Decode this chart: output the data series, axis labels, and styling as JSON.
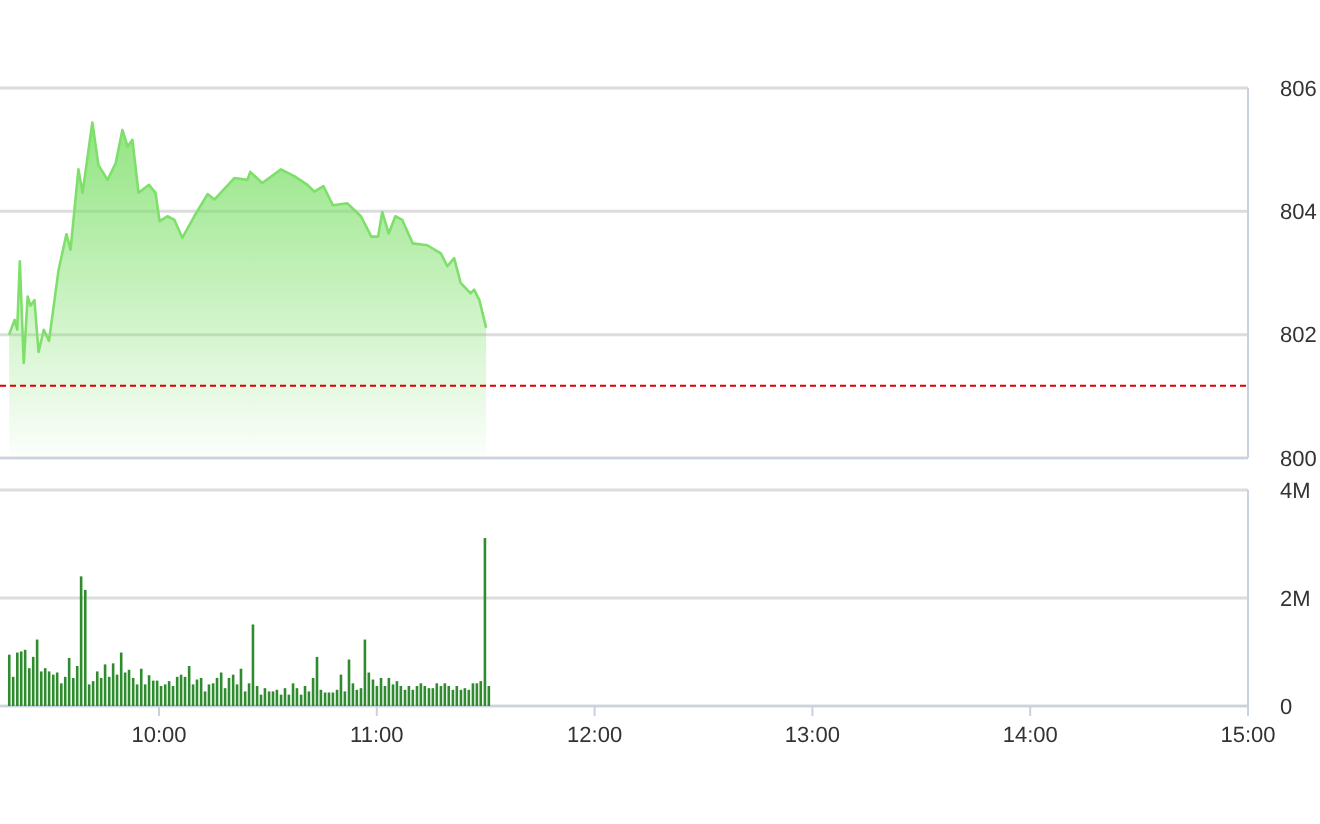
{
  "chart_data": [
    {
      "type": "area",
      "xlim": [
        9.27,
        15
      ],
      "ylim": [
        800,
        806
      ],
      "yticks": [
        800,
        802,
        804,
        806
      ],
      "grid": "y",
      "tick_labels": "y",
      "ref_lines": [
        {
          "axis": "y",
          "value": 801.17,
          "color": "#e00000",
          "line_style": "dashed"
        }
      ],
      "series": [
        {
          "color": "#7ee06a",
          "x": [
            9.312,
            9.337,
            9.349,
            9.361,
            9.379,
            9.397,
            9.41,
            9.428,
            9.447,
            9.471,
            9.495,
            9.539,
            9.575,
            9.594,
            9.63,
            9.649,
            9.694,
            9.722,
            9.764,
            9.801,
            9.832,
            9.856,
            9.878,
            9.906,
            9.954,
            9.984,
            10.003,
            10.039,
            10.071,
            10.107,
            10.162,
            10.223,
            10.254,
            10.346,
            10.406,
            10.419,
            10.474,
            10.56,
            10.621,
            10.682,
            10.713,
            10.755,
            10.798,
            10.865,
            10.927,
            10.975,
            11.006,
            11.025,
            11.055,
            11.085,
            11.117,
            11.165,
            11.232,
            11.294,
            11.324,
            11.355,
            11.385,
            11.431,
            11.447,
            11.471,
            11.502
          ],
          "values": [
            802.0,
            802.24,
            802.08,
            803.19,
            801.54,
            802.62,
            802.47,
            802.56,
            801.72,
            802.08,
            801.9,
            803.05,
            803.63,
            803.38,
            804.68,
            804.3,
            805.44,
            804.75,
            804.51,
            804.78,
            805.32,
            805.05,
            805.16,
            804.3,
            804.43,
            804.3,
            803.84,
            803.92,
            803.86,
            803.57,
            803.92,
            804.28,
            804.19,
            804.54,
            804.51,
            804.64,
            804.46,
            804.68,
            804.57,
            804.43,
            804.32,
            804.41,
            804.1,
            804.13,
            803.92,
            803.59,
            803.59,
            803.99,
            803.64,
            803.92,
            803.86,
            803.48,
            803.45,
            803.32,
            803.11,
            803.24,
            802.84,
            802.67,
            802.73,
            802.56,
            802.11
          ]
        }
      ]
    },
    {
      "type": "bar",
      "xlim": [
        9.27,
        15
      ],
      "xticks": [
        {
          "value": 10,
          "label": "10:00"
        },
        {
          "value": 11,
          "label": "11:00"
        },
        {
          "value": 12,
          "label": "12:00"
        },
        {
          "value": 13,
          "label": "13:00"
        },
        {
          "value": 14,
          "label": "14:00"
        },
        {
          "value": 15,
          "label": "15:00"
        }
      ],
      "ylim": [
        0,
        4
      ],
      "yticks": [
        0,
        {
          "value": 2,
          "label": "2M"
        },
        {
          "value": 4,
          "label": "4M"
        }
      ],
      "grid": "y",
      "series": [
        {
          "color": "#2e8b2e",
          "x": [
            9.312,
            9.33,
            9.349,
            9.367,
            9.385,
            9.404,
            9.422,
            9.44,
            9.459,
            9.477,
            9.495,
            9.514,
            9.532,
            9.551,
            9.569,
            9.587,
            9.606,
            9.624,
            9.642,
            9.661,
            9.679,
            9.697,
            9.716,
            9.734,
            9.752,
            9.771,
            9.789,
            9.807,
            9.826,
            9.844,
            9.862,
            9.881,
            9.899,
            9.918,
            9.936,
            9.954,
            9.973,
            9.991,
            10.009,
            10.028,
            10.046,
            10.064,
            10.083,
            10.101,
            10.119,
            10.138,
            10.156,
            10.174,
            10.193,
            10.211,
            10.229,
            10.248,
            10.266,
            10.285,
            10.303,
            10.321,
            10.34,
            10.358,
            10.376,
            10.395,
            10.413,
            10.431,
            10.45,
            10.468,
            10.486,
            10.505,
            10.523,
            10.541,
            10.56,
            10.578,
            10.596,
            10.615,
            10.633,
            10.652,
            10.67,
            10.688,
            10.707,
            10.725,
            10.743,
            10.762,
            10.78,
            10.798,
            10.817,
            10.835,
            10.853,
            10.872,
            10.89,
            10.908,
            10.927,
            10.945,
            10.963,
            10.982,
            11.0,
            11.019,
            11.037,
            11.055,
            11.074,
            11.092,
            11.11,
            11.129,
            11.147,
            11.165,
            11.184,
            11.202,
            11.22,
            11.239,
            11.257,
            11.275,
            11.294,
            11.312,
            11.33,
            11.349,
            11.367,
            11.386,
            11.404,
            11.422,
            11.441,
            11.459,
            11.477,
            11.496,
            11.514
          ],
          "values": [
            0.95,
            0.54,
            0.99,
            1.01,
            1.04,
            0.7,
            0.91,
            1.23,
            0.64,
            0.7,
            0.64,
            0.58,
            0.62,
            0.42,
            0.54,
            0.89,
            0.52,
            0.74,
            2.4,
            2.15,
            0.4,
            0.46,
            0.64,
            0.52,
            0.77,
            0.54,
            0.79,
            0.58,
            0.99,
            0.62,
            0.67,
            0.52,
            0.4,
            0.69,
            0.4,
            0.57,
            0.47,
            0.47,
            0.37,
            0.4,
            0.46,
            0.37,
            0.54,
            0.58,
            0.54,
            0.74,
            0.4,
            0.49,
            0.52,
            0.27,
            0.4,
            0.42,
            0.52,
            0.62,
            0.33,
            0.52,
            0.58,
            0.4,
            0.69,
            0.27,
            0.42,
            1.51,
            0.37,
            0.21,
            0.33,
            0.27,
            0.27,
            0.3,
            0.21,
            0.33,
            0.21,
            0.42,
            0.33,
            0.21,
            0.37,
            0.27,
            0.52,
            0.91,
            0.3,
            0.25,
            0.25,
            0.25,
            0.3,
            0.58,
            0.27,
            0.86,
            0.42,
            0.3,
            0.33,
            1.23,
            0.62,
            0.49,
            0.37,
            0.52,
            0.37,
            0.52,
            0.4,
            0.46,
            0.37,
            0.3,
            0.37,
            0.3,
            0.37,
            0.42,
            0.37,
            0.33,
            0.33,
            0.42,
            0.37,
            0.42,
            0.37,
            0.3,
            0.37,
            0.3,
            0.33,
            0.3,
            0.42,
            0.42,
            0.46,
            3.11,
            0.37
          ]
        }
      ]
    }
  ]
}
